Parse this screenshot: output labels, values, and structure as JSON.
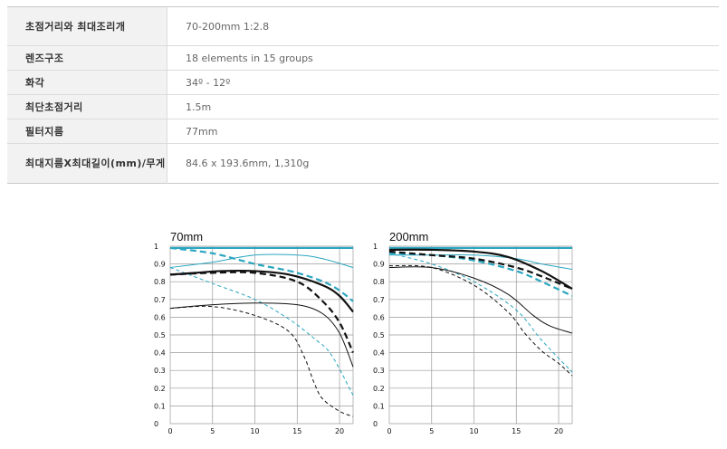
{
  "spec_table": {
    "rows": [
      {
        "label": "초점거리와 최대조리개",
        "value": "70-200mm 1:2.8"
      },
      {
        "label": "렌즈구조",
        "value": "18 elements in 15 groups"
      },
      {
        "label": "화각",
        "value": "34º - 12º"
      },
      {
        "label": "최단초점거리",
        "value": "1.5m"
      },
      {
        "label": "필터지름",
        "value": "77mm"
      },
      {
        "label": "최대지름X최대길이(mm)/무게",
        "value": "84.6 x 193.6mm, 1,310g"
      }
    ]
  },
  "colors": {
    "cyan": "#2aa6c0",
    "black": "#111111",
    "grid": "#9a9a9a"
  },
  "chart_data": [
    {
      "type": "line",
      "title": "70mm",
      "xlim": [
        0,
        21.6
      ],
      "ylim": [
        0,
        1
      ],
      "x_ticks": [
        0,
        5,
        10,
        15,
        20
      ],
      "y_ticks": [
        0,
        0.1,
        0.2,
        0.3,
        0.4,
        0.5,
        0.6,
        0.7,
        0.8,
        0.9,
        1
      ],
      "y_tick_labels": [
        "0",
        "0.1",
        "0.2",
        "0.3",
        "0.4",
        "0.5",
        "0.6",
        "0.7",
        "0.8",
        "0.9",
        "1"
      ],
      "grid": true,
      "series": [
        {
          "color": "cyan",
          "width": 2.2,
          "dash": "",
          "points": [
            [
              0,
              0.99
            ],
            [
              5,
              0.99
            ],
            [
              10,
              0.99
            ],
            [
              15,
              0.99
            ],
            [
              21.6,
              0.99
            ]
          ]
        },
        {
          "color": "cyan",
          "width": 1,
          "dash": "",
          "points": [
            [
              0,
              0.88
            ],
            [
              5,
              0.91
            ],
            [
              10,
              0.95
            ],
            [
              15,
              0.95
            ],
            [
              18,
              0.93
            ],
            [
              21.6,
              0.88
            ]
          ]
        },
        {
          "color": "cyan",
          "width": 2.2,
          "dash": "7,4",
          "points": [
            [
              0,
              0.99
            ],
            [
              5,
              0.96
            ],
            [
              10,
              0.9
            ],
            [
              15,
              0.85
            ],
            [
              19,
              0.78
            ],
            [
              21.6,
              0.69
            ]
          ]
        },
        {
          "color": "cyan",
          "width": 1,
          "dash": "4,3",
          "points": [
            [
              0,
              0.88
            ],
            [
              5,
              0.79
            ],
            [
              10,
              0.7
            ],
            [
              14,
              0.59
            ],
            [
              17,
              0.48
            ],
            [
              19,
              0.39
            ],
            [
              21.6,
              0.16
            ]
          ]
        },
        {
          "color": "black",
          "width": 2.2,
          "dash": "",
          "points": [
            [
              0,
              0.84
            ],
            [
              3,
              0.85
            ],
            [
              6,
              0.86
            ],
            [
              10,
              0.86
            ],
            [
              14,
              0.84
            ],
            [
              18,
              0.78
            ],
            [
              20,
              0.72
            ],
            [
              21.6,
              0.63
            ]
          ]
        },
        {
          "color": "black",
          "width": 2.2,
          "dash": "7,4",
          "points": [
            [
              0,
              0.84
            ],
            [
              5,
              0.85
            ],
            [
              10,
              0.85
            ],
            [
              15,
              0.8
            ],
            [
              18,
              0.69
            ],
            [
              20,
              0.57
            ],
            [
              21.6,
              0.4
            ]
          ]
        },
        {
          "color": "black",
          "width": 1,
          "dash": "",
          "points": [
            [
              0,
              0.65
            ],
            [
              5,
              0.67
            ],
            [
              10,
              0.68
            ],
            [
              15,
              0.67
            ],
            [
              18,
              0.62
            ],
            [
              20,
              0.51
            ],
            [
              21.6,
              0.32
            ]
          ]
        },
        {
          "color": "black",
          "width": 1,
          "dash": "4,3",
          "points": [
            [
              0,
              0.65
            ],
            [
              5,
              0.66
            ],
            [
              10,
              0.61
            ],
            [
              14,
              0.52
            ],
            [
              15.8,
              0.38
            ],
            [
              17,
              0.23
            ],
            [
              18,
              0.14
            ],
            [
              20,
              0.07
            ],
            [
              21.6,
              0.04
            ]
          ]
        }
      ]
    },
    {
      "type": "line",
      "title": "200mm",
      "xlim": [
        0,
        21.6
      ],
      "ylim": [
        0,
        1
      ],
      "x_ticks": [
        0,
        5,
        10,
        15,
        20
      ],
      "y_ticks": [
        0,
        0.1,
        0.2,
        0.3,
        0.4,
        0.5,
        0.6,
        0.7,
        0.8,
        0.9,
        1
      ],
      "y_tick_labels": [
        "0",
        "0.1",
        "0.2",
        "0.3",
        "0.4",
        "0.5",
        "0.6",
        "0.7",
        "0.8",
        "0.9",
        "1"
      ],
      "grid": true,
      "series": [
        {
          "color": "cyan",
          "width": 2.2,
          "dash": "",
          "points": [
            [
              0,
              0.99
            ],
            [
              5,
              0.99
            ],
            [
              10,
              0.99
            ],
            [
              15,
              0.99
            ],
            [
              21.6,
              0.99
            ]
          ]
        },
        {
          "color": "cyan",
          "width": 1,
          "dash": "",
          "points": [
            [
              0,
              0.95
            ],
            [
              5,
              0.95
            ],
            [
              10,
              0.95
            ],
            [
              15,
              0.93
            ],
            [
              18,
              0.9
            ],
            [
              21.6,
              0.87
            ]
          ]
        },
        {
          "color": "cyan",
          "width": 2.2,
          "dash": "7,4",
          "points": [
            [
              0,
              0.96
            ],
            [
              5,
              0.95
            ],
            [
              10,
              0.92
            ],
            [
              15,
              0.86
            ],
            [
              18,
              0.8
            ],
            [
              21.6,
              0.72
            ]
          ]
        },
        {
          "color": "cyan",
          "width": 1,
          "dash": "4,3",
          "points": [
            [
              0,
              0.96
            ],
            [
              5,
              0.9
            ],
            [
              10,
              0.8
            ],
            [
              15,
              0.64
            ],
            [
              18,
              0.47
            ],
            [
              21.6,
              0.29
            ]
          ]
        },
        {
          "color": "black",
          "width": 2.2,
          "dash": "",
          "points": [
            [
              0,
              0.98
            ],
            [
              5,
              0.98
            ],
            [
              10,
              0.97
            ],
            [
              14,
              0.94
            ],
            [
              18,
              0.86
            ],
            [
              21.6,
              0.76
            ]
          ]
        },
        {
          "color": "black",
          "width": 2.2,
          "dash": "7,4",
          "points": [
            [
              0,
              0.97
            ],
            [
              5,
              0.95
            ],
            [
              10,
              0.93
            ],
            [
              15,
              0.88
            ],
            [
              18,
              0.83
            ],
            [
              21.6,
              0.76
            ]
          ]
        },
        {
          "color": "black",
          "width": 1,
          "dash": "",
          "points": [
            [
              0,
              0.88
            ],
            [
              5,
              0.88
            ],
            [
              10,
              0.82
            ],
            [
              14,
              0.73
            ],
            [
              17,
              0.61
            ],
            [
              19,
              0.55
            ],
            [
              21.6,
              0.51
            ]
          ]
        },
        {
          "color": "black",
          "width": 1,
          "dash": "4,3",
          "points": [
            [
              0,
              0.89
            ],
            [
              5,
              0.88
            ],
            [
              10,
              0.78
            ],
            [
              14,
              0.63
            ],
            [
              16,
              0.51
            ],
            [
              18,
              0.41
            ],
            [
              20,
              0.34
            ],
            [
              21.6,
              0.27
            ]
          ]
        }
      ]
    }
  ]
}
